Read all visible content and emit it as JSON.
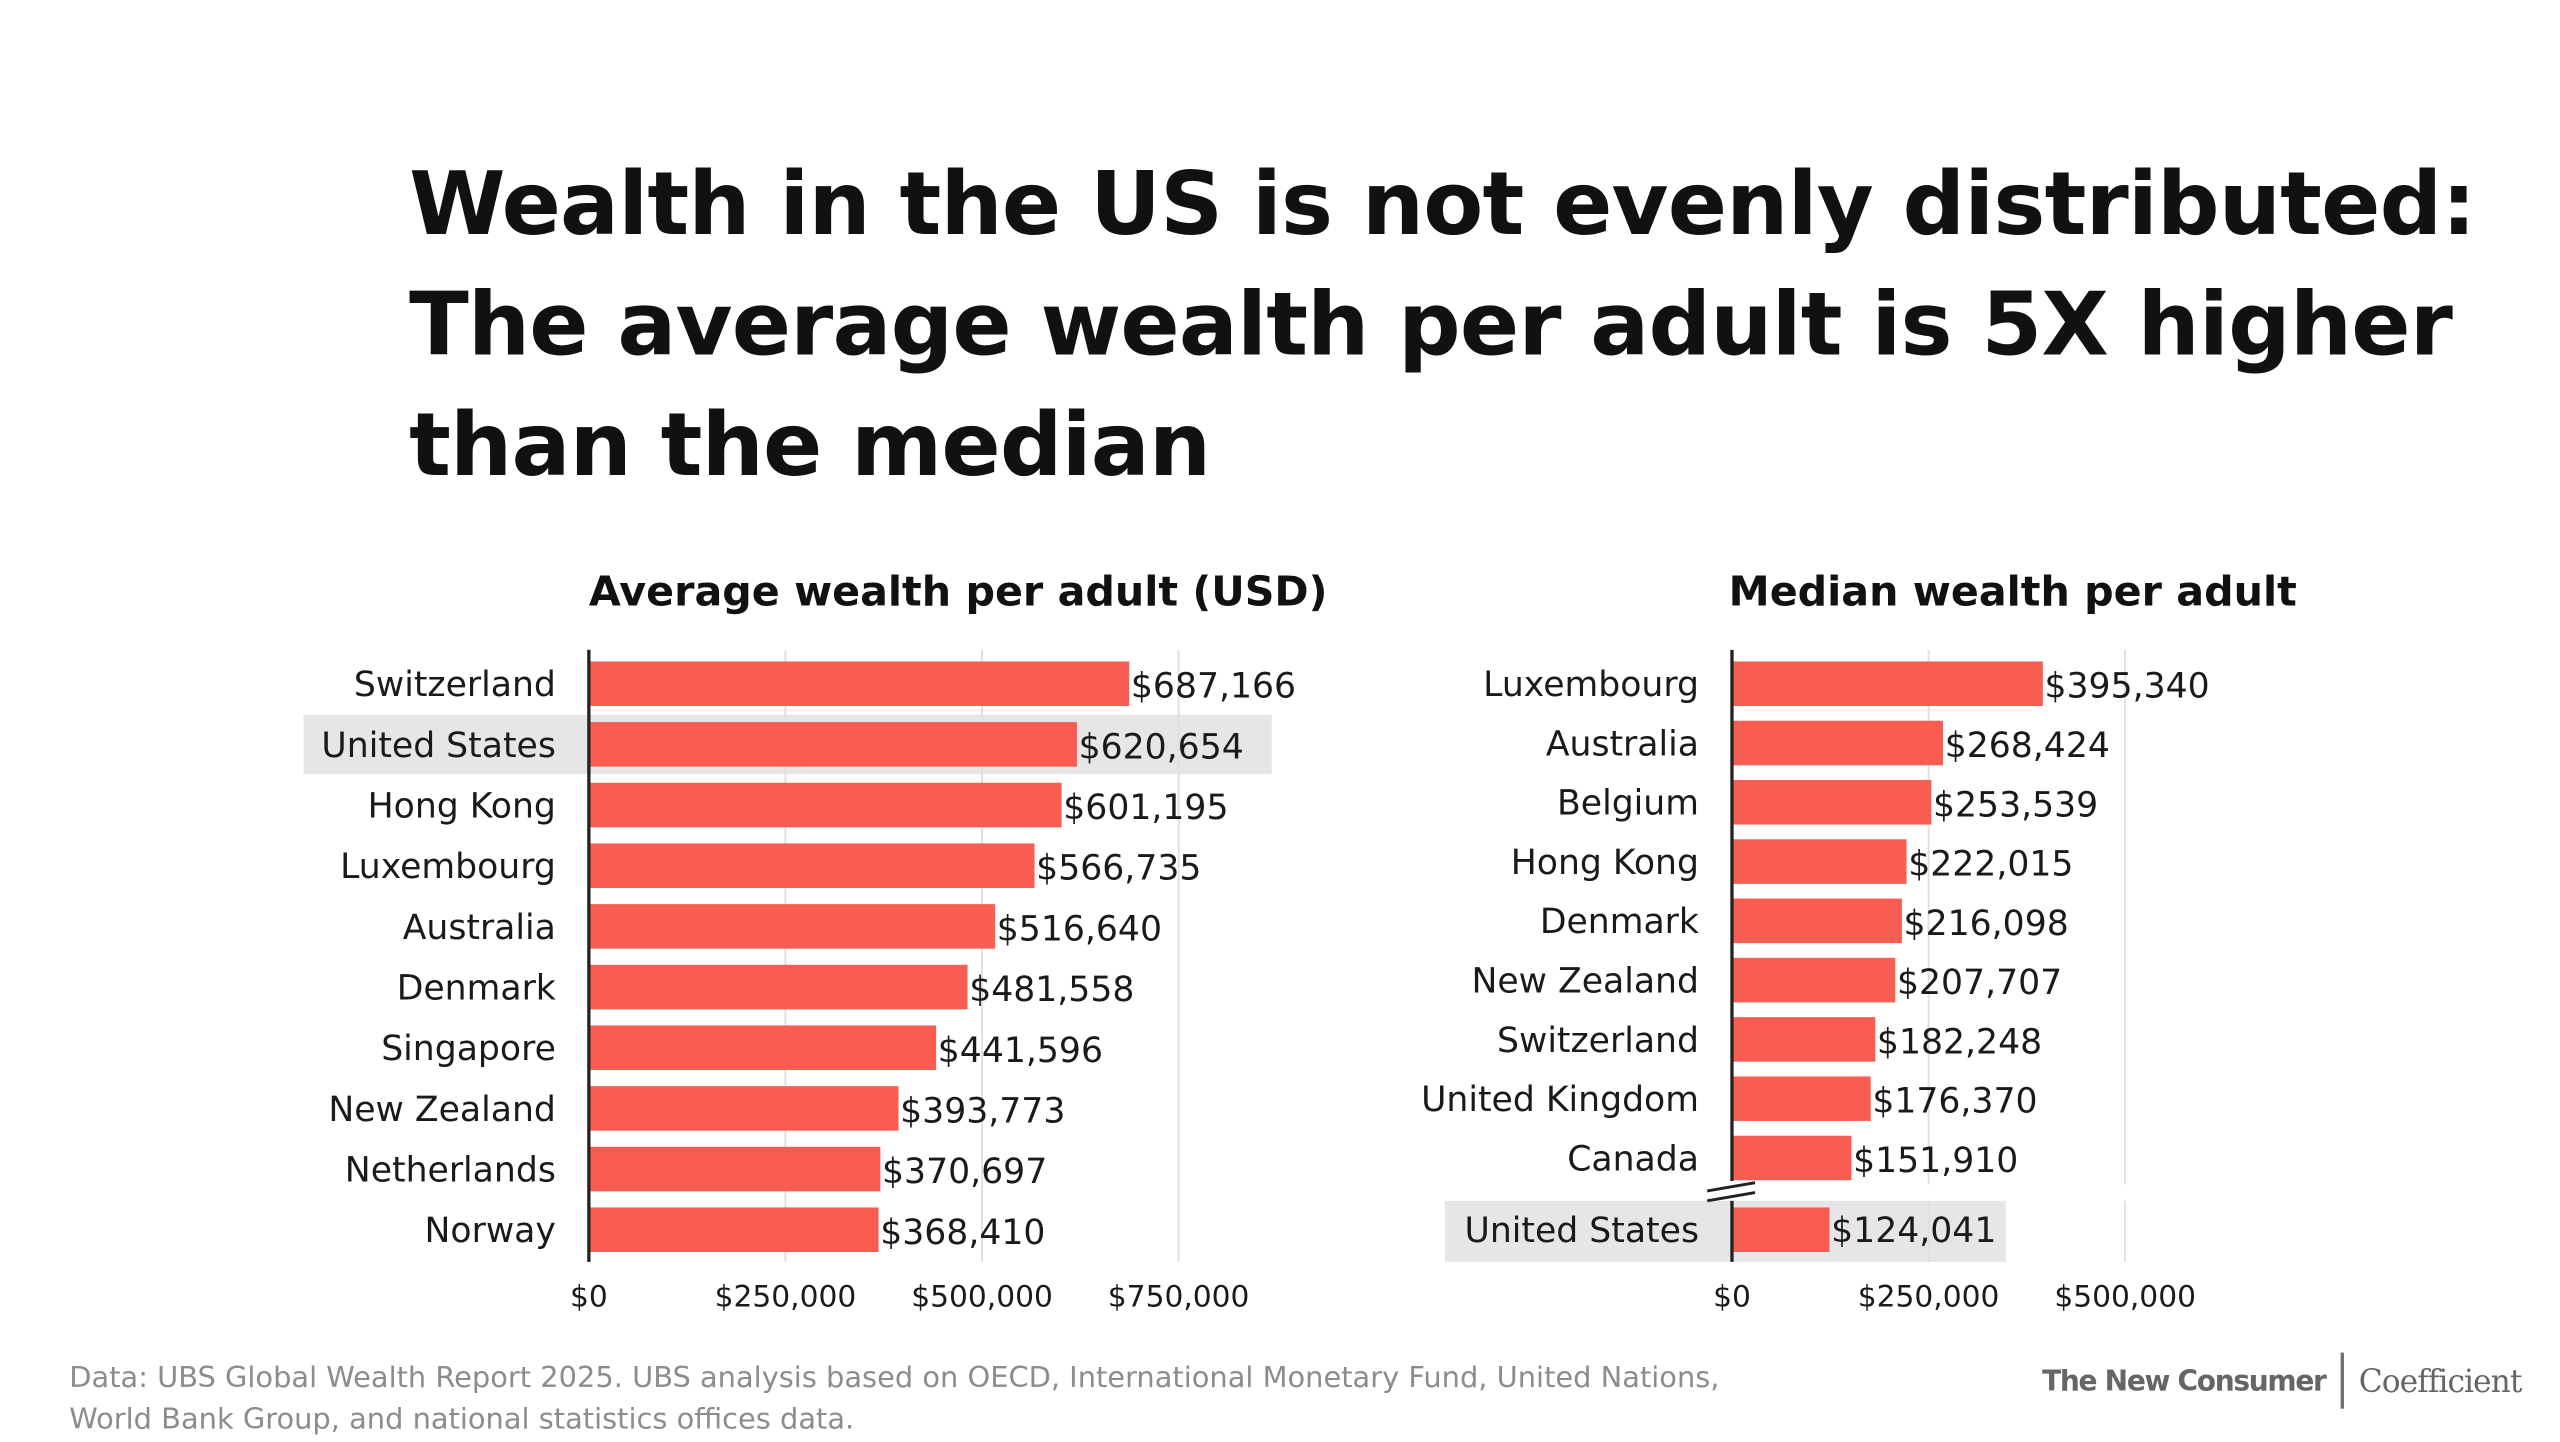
{
  "title_lines": [
    "Wealth in the US is not evenly distributed:",
    "The average wealth per adult is 5X higher",
    "than the median"
  ],
  "colors": {
    "bar": "#F95D52",
    "highlight": "#E6E6E6",
    "gridline": "#E0E0E0",
    "axis": "#222222",
    "text": "#1A1A1A",
    "footer": "#8C8C8C"
  },
  "chart_data": [
    {
      "type": "bar",
      "orientation": "horizontal",
      "title": "Average wealth per adult (USD)",
      "categories": [
        "Switzerland",
        "United States",
        "Hong Kong",
        "Luxembourg",
        "Australia",
        "Denmark",
        "Singapore",
        "New Zealand",
        "Netherlands",
        "Norway"
      ],
      "values": [
        687166,
        620654,
        601195,
        566735,
        516640,
        481558,
        441596,
        393773,
        370697,
        368410
      ],
      "value_labels": [
        "$687,166",
        "$620,654",
        "$601,195",
        "$566,735",
        "$516,640",
        "$481,558",
        "$441,596",
        "$393,773",
        "$370,697",
        "$368,410"
      ],
      "highlight": [
        "United States"
      ],
      "xlim": [
        0,
        860000
      ],
      "ticks": [
        0,
        250000,
        500000,
        750000
      ],
      "tick_labels": [
        "$0",
        "$250,000",
        "$500,000",
        "$750,000"
      ],
      "grid": true,
      "xlabel": "",
      "ylabel": ""
    },
    {
      "type": "bar",
      "orientation": "horizontal",
      "title": "Median wealth per adult",
      "categories": [
        "Luxembourg",
        "Australia",
        "Belgium",
        "Hong Kong",
        "Denmark",
        "New Zealand",
        "Switzerland",
        "United Kingdom",
        "Canada"
      ],
      "values": [
        395340,
        268424,
        253539,
        222015,
        216098,
        207707,
        182248,
        176370,
        151910
      ],
      "value_labels": [
        "$395,340",
        "$268,424",
        "$253,539",
        "$222,015",
        "$216,098",
        "$207,707",
        "$182,248",
        "$176,370",
        "$151,910"
      ],
      "axis_break": true,
      "separate_category": "United States",
      "separate_value": 124041,
      "separate_value_label": "$124,041",
      "highlight": [
        "United States"
      ],
      "xlim": [
        0,
        600000
      ],
      "ticks": [
        0,
        250000,
        500000
      ],
      "tick_labels": [
        "$0",
        "$250,000",
        "$500,000"
      ],
      "grid": true,
      "xlabel": "",
      "ylabel": ""
    }
  ],
  "footer": {
    "source_lines": [
      "Data: UBS Global Wealth Report 2025. UBS analysis based on OECD, International Monetary Fund, United Nations,",
      "World Bank Group, and national statistics offices data."
    ],
    "brand_primary": "The New Consumer",
    "brand_secondary": "Coefficient"
  }
}
